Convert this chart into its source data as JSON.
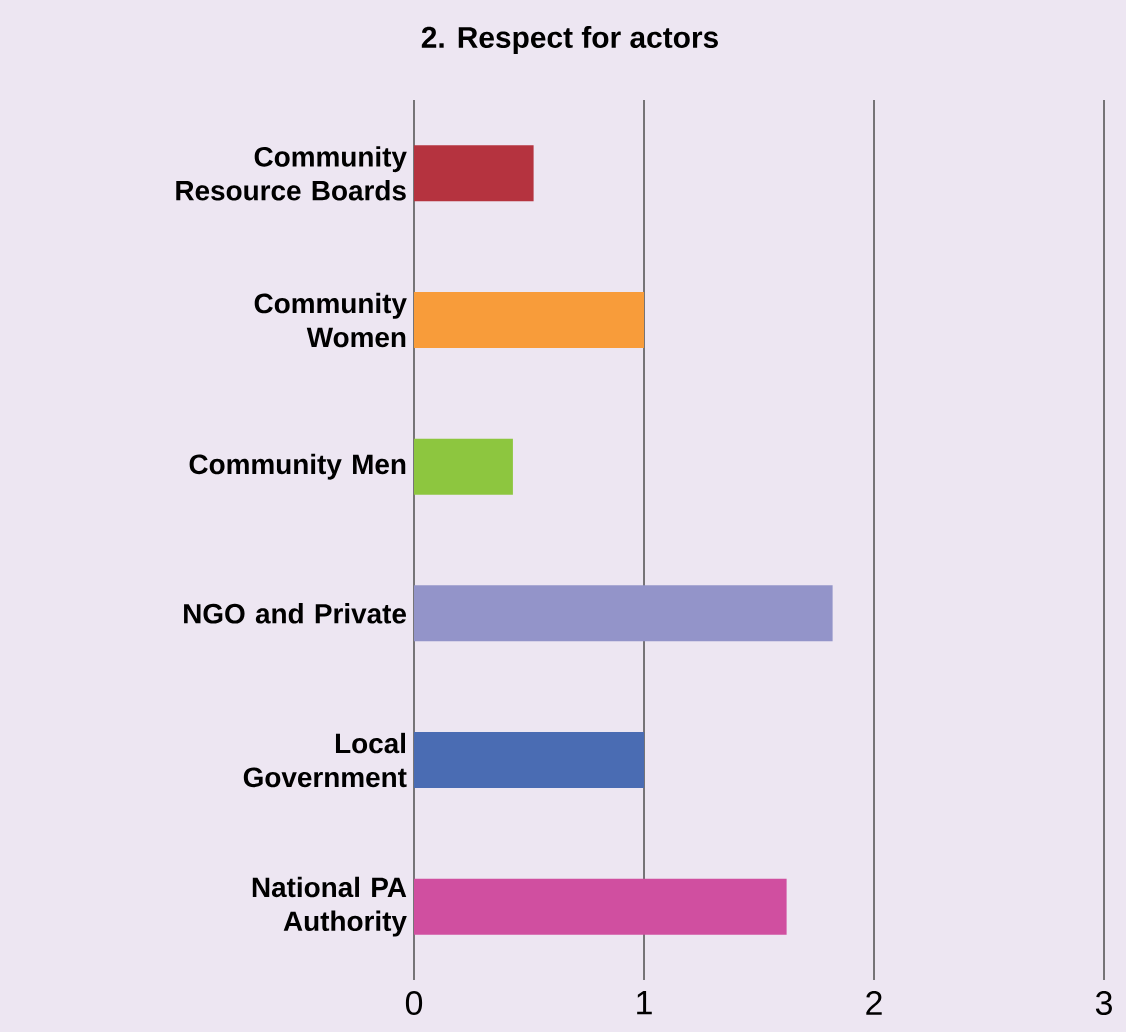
{
  "chart_data": {
    "type": "bar",
    "orientation": "horizontal",
    "title": "2.    Respect for actors",
    "categories": [
      "Community Resource Boards",
      "Community Women",
      "Community Men",
      "NGO and Private",
      "Local Government",
      "National PA Authority"
    ],
    "values": [
      0.52,
      1.0,
      0.43,
      1.82,
      1.0,
      1.62
    ],
    "colors": [
      "#b5333f",
      "#f89c3a",
      "#8dc63f",
      "#9394c9",
      "#4a6cb3",
      "#d04fa0"
    ],
    "xlim": [
      0,
      3
    ],
    "xticks": [
      0,
      1,
      2,
      3
    ],
    "grid": "x"
  }
}
